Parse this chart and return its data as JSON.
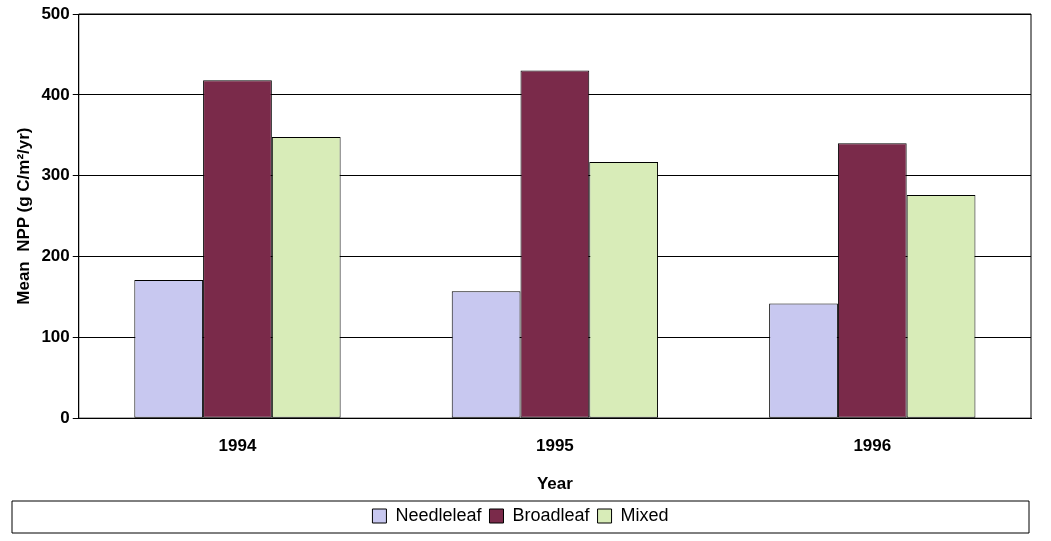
{
  "chart_data": {
    "type": "bar",
    "categories": [
      "1994",
      "1995",
      "1996"
    ],
    "series": [
      {
        "name": "Needleleaf",
        "color": "#c8c8f0",
        "values": [
          171,
          157,
          142
        ]
      },
      {
        "name": "Broadleaf",
        "color": "#7a2a4a",
        "values": [
          418,
          430,
          340
        ]
      },
      {
        "name": "Mixed",
        "color": "#d8ecb8",
        "values": [
          348,
          317,
          276
        ]
      }
    ],
    "xlabel": "Year",
    "ylabel": "Mean  NPP (g C/m²/yr)",
    "ylim": [
      0,
      500
    ],
    "yticks": [
      0,
      100,
      200,
      300,
      400,
      500
    ],
    "grid": "y",
    "legend": "bottom"
  }
}
